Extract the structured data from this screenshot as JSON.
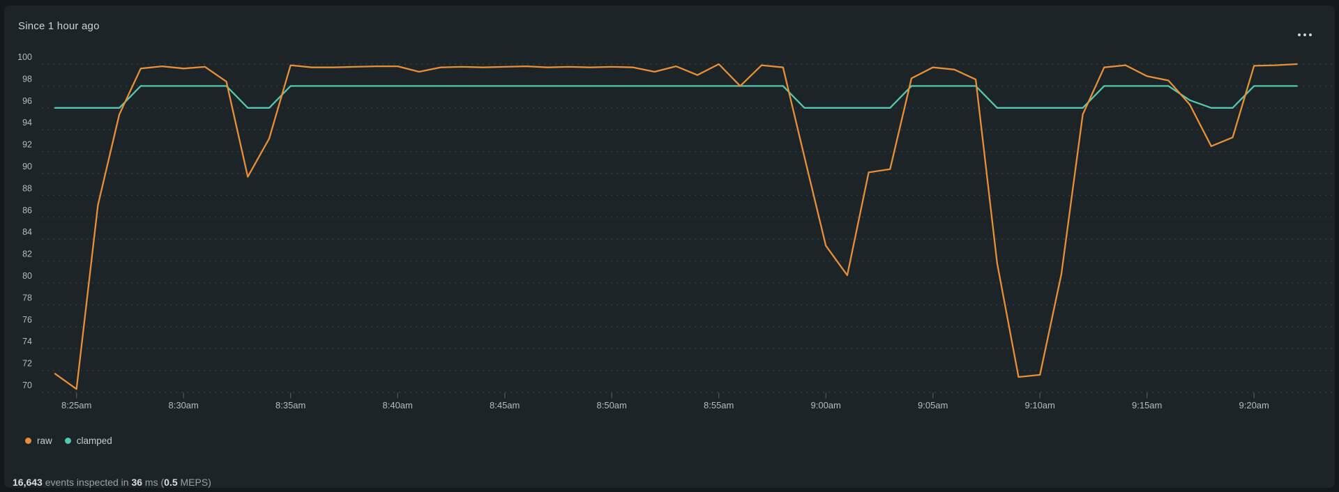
{
  "header": {
    "title": "Since 1 hour ago",
    "more_button": "more options"
  },
  "chart_data": {
    "type": "line",
    "title": "Since 1 hour ago",
    "x_axis": {
      "start_time": "8:24am",
      "end_time": "9:22am",
      "point_interval_minutes": 1,
      "tick_labels": [
        "8:25am",
        "8:30am",
        "8:35am",
        "8:40am",
        "8:45am",
        "8:50am",
        "8:55am",
        "9:00am",
        "9:05am",
        "9:10am",
        "9:15am",
        "9:20am"
      ],
      "tick_minute_offsets": [
        1,
        6,
        11,
        16,
        21,
        26,
        31,
        36,
        41,
        46,
        51,
        56
      ]
    },
    "y_axis": {
      "min": 70,
      "max": 100,
      "step": 2,
      "tick_labels": [
        "100",
        "98",
        "96",
        "94",
        "92",
        "90",
        "88",
        "86",
        "84",
        "82",
        "80",
        "78",
        "76",
        "74",
        "72",
        "70"
      ]
    },
    "grid": "horizontal-dashed",
    "legend_position": "bottom-left",
    "series": [
      {
        "name": "clamped",
        "color": "#54c8b0",
        "values": [
          96,
          96,
          96,
          96,
          98,
          98,
          98,
          98,
          98,
          96,
          96,
          98,
          98,
          98,
          98,
          98,
          98,
          98,
          98,
          98,
          98,
          98,
          98,
          98,
          98,
          98,
          98,
          98,
          98,
          98,
          98,
          98,
          98,
          98,
          98,
          96,
          96,
          96,
          96,
          96,
          98,
          98,
          98,
          98,
          96,
          96,
          96,
          96,
          96,
          98,
          98,
          98,
          98,
          96.7,
          96,
          96,
          98,
          98,
          98
        ]
      },
      {
        "name": "raw",
        "color": "#e89038",
        "values": [
          71.7,
          70.3,
          87.1,
          95.4,
          99.6,
          99.8,
          99.6,
          99.75,
          98.4,
          89.7,
          93.2,
          99.9,
          99.7,
          99.7,
          99.75,
          99.8,
          99.8,
          99.3,
          99.7,
          99.75,
          99.7,
          99.75,
          99.8,
          99.7,
          99.75,
          99.7,
          99.75,
          99.7,
          99.3,
          99.8,
          99.0,
          100.0,
          98.0,
          99.9,
          99.7,
          91.5,
          83.4,
          80.7,
          90.1,
          90.4,
          98.7,
          99.7,
          99.5,
          98.6,
          81.8,
          71.4,
          71.6,
          80.8,
          95.4,
          99.7,
          99.9,
          98.9,
          98.5,
          96.3,
          92.5,
          93.3,
          99.85,
          99.9,
          100.0
        ]
      }
    ]
  },
  "legend": {
    "items": [
      {
        "label": "raw",
        "color": "#e89038"
      },
      {
        "label": "clamped",
        "color": "#54c8b0"
      }
    ]
  },
  "stats": {
    "segments": [
      {
        "text": "16,643",
        "bold": true
      },
      {
        "text": " events inspected in ",
        "bold": false
      },
      {
        "text": "36",
        "bold": true
      },
      {
        "text": " ms (",
        "bold": false
      },
      {
        "text": "0.5",
        "bold": true
      },
      {
        "text": " MEPS)",
        "bold": false
      }
    ]
  },
  "colors": {
    "card_background": "#1d2428",
    "page_background": "#12181b",
    "gridline": "#5a656c",
    "axis_label": "#b3bcc1",
    "title_text": "#cdd3d7"
  }
}
